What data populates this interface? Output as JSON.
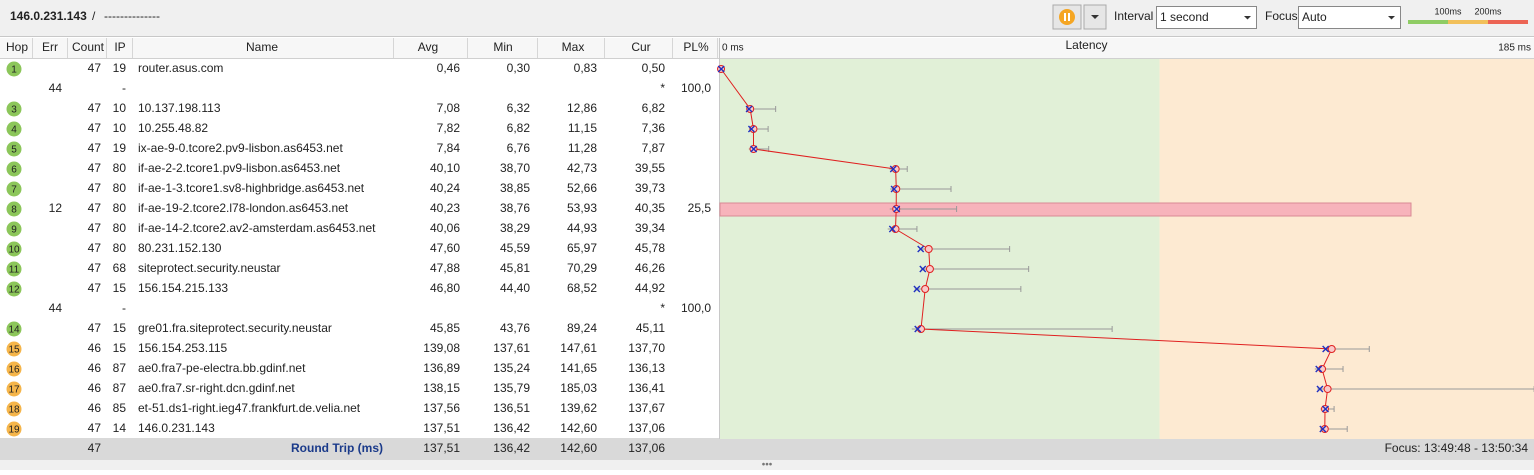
{
  "header": {
    "target": "146.0.231.143",
    "separator": "/",
    "session": "--------------"
  },
  "controls": {
    "interval_label": "Interval",
    "interval_value": "1 second",
    "focus_label": "Focus",
    "focus_value": "Auto",
    "scale_labels": [
      "100ms",
      "200ms"
    ]
  },
  "table": {
    "columns": [
      "Hop",
      "Err",
      "Count",
      "IP",
      "Name",
      "Avg",
      "Min",
      "Max",
      "Cur",
      "PL%"
    ],
    "graph_header": {
      "start": "0 ms",
      "title": "Latency",
      "end": "185 ms"
    },
    "rows": [
      {
        "hop": "1",
        "color": "#8cc65a",
        "count": "47",
        "ip": "19",
        "name": "router.asus.com",
        "avg": "0,46",
        "min": "0,30",
        "max": "0,83",
        "cur": "0,50"
      },
      {
        "err": "44",
        "ip": "-",
        "cur": "*",
        "pl": "100,0"
      },
      {
        "hop": "3",
        "color": "#8cc65a",
        "count": "47",
        "ip": "10",
        "name": "10.137.198.113",
        "avg": "7,08",
        "min": "6,32",
        "max": "12,86",
        "cur": "6,82"
      },
      {
        "hop": "4",
        "color": "#8cc65a",
        "count": "47",
        "ip": "10",
        "name": "10.255.48.82",
        "avg": "7,82",
        "min": "6,82",
        "max": "11,15",
        "cur": "7,36"
      },
      {
        "hop": "5",
        "color": "#8cc65a",
        "count": "47",
        "ip": "19",
        "name": "ix-ae-9-0.tcore2.pv9-lisbon.as6453.net",
        "avg": "7,84",
        "min": "6,76",
        "max": "11,28",
        "cur": "7,87"
      },
      {
        "hop": "6",
        "color": "#8cc65a",
        "count": "47",
        "ip": "80",
        "name": "if-ae-2-2.tcore1.pv9-lisbon.as6453.net",
        "avg": "40,10",
        "min": "38,70",
        "max": "42,73",
        "cur": "39,55"
      },
      {
        "hop": "7",
        "color": "#8cc65a",
        "count": "47",
        "ip": "80",
        "name": "if-ae-1-3.tcore1.sv8-highbridge.as6453.net",
        "avg": "40,24",
        "min": "38,85",
        "max": "52,66",
        "cur": "39,73"
      },
      {
        "hop": "8",
        "color": "#8cc65a",
        "err": "12",
        "count": "47",
        "ip": "80",
        "name": "if-ae-19-2.tcore2.l78-london.as6453.net",
        "avg": "40,23",
        "min": "38,76",
        "max": "53,93",
        "cur": "40,35",
        "pl": "25,5"
      },
      {
        "hop": "9",
        "color": "#8cc65a",
        "count": "47",
        "ip": "80",
        "name": "if-ae-14-2.tcore2.av2-amsterdam.as6453.net",
        "avg": "40,06",
        "min": "38,29",
        "max": "44,93",
        "cur": "39,34"
      },
      {
        "hop": "10",
        "color": "#8cc65a",
        "count": "47",
        "ip": "80",
        "name": "80.231.152.130",
        "avg": "47,60",
        "min": "45,59",
        "max": "65,97",
        "cur": "45,78"
      },
      {
        "hop": "11",
        "color": "#8cc65a",
        "count": "47",
        "ip": "68",
        "name": "siteprotect.security.neustar",
        "avg": "47,88",
        "min": "45,81",
        "max": "70,29",
        "cur": "46,26"
      },
      {
        "hop": "12",
        "color": "#8cc65a",
        "count": "47",
        "ip": "15",
        "name": "156.154.215.133",
        "avg": "46,80",
        "min": "44,40",
        "max": "68,52",
        "cur": "44,92"
      },
      {
        "err": "44",
        "ip": "-",
        "cur": "*",
        "pl": "100,0"
      },
      {
        "hop": "14",
        "color": "#8cc65a",
        "count": "47",
        "ip": "15",
        "name": "gre01.fra.siteprotect.security.neustar",
        "avg": "45,85",
        "min": "43,76",
        "max": "89,24",
        "cur": "45,11"
      },
      {
        "hop": "15",
        "color": "#f5b54a",
        "count": "46",
        "ip": "15",
        "name": "156.154.253.115",
        "avg": "139,08",
        "min": "137,61",
        "max": "147,61",
        "cur": "137,70"
      },
      {
        "hop": "16",
        "color": "#f5b54a",
        "count": "46",
        "ip": "87",
        "name": "ae0.fra7-pe-electra.bb.gdinf.net",
        "avg": "136,89",
        "min": "135,24",
        "max": "141,65",
        "cur": "136,13"
      },
      {
        "hop": "17",
        "color": "#f5b54a",
        "count": "46",
        "ip": "87",
        "name": "ae0.fra7.sr-right.dcn.gdinf.net",
        "avg": "138,15",
        "min": "135,79",
        "max": "185,03",
        "cur": "136,41"
      },
      {
        "hop": "18",
        "color": "#f5b54a",
        "count": "46",
        "ip": "85",
        "name": "et-51.ds1-right.ieg47.frankfurt.de.velia.net",
        "avg": "137,56",
        "min": "136,51",
        "max": "139,62",
        "cur": "137,67"
      },
      {
        "hop": "19",
        "color": "#f5b54a",
        "count": "47",
        "ip": "14",
        "name": "146.0.231.143",
        "avg": "137,51",
        "min": "136,42",
        "max": "142,60",
        "cur": "137,06"
      }
    ],
    "footer": {
      "count": "47",
      "label": "Round Trip (ms)",
      "avg": "137,51",
      "min": "136,42",
      "max": "142,60",
      "cur": "137,06",
      "focus": "Focus: 13:49:48 - 13:50:34"
    }
  }
}
